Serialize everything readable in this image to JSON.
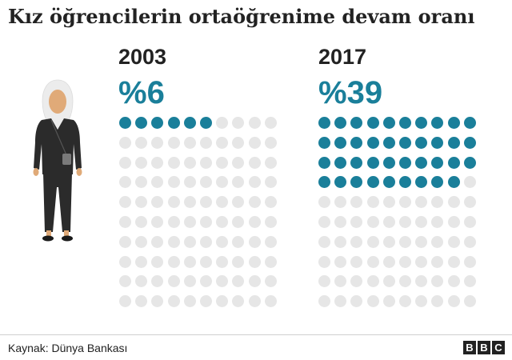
{
  "title": "Kız öğrencilerin ortaöğrenime devam oranı",
  "source": "Kaynak: Dünya Bankası",
  "logo": "BBC",
  "colors": {
    "filled": "#1a7f9a",
    "empty": "#e6e6e6",
    "text": "#222222"
  },
  "chart_data": [
    {
      "type": "waffle",
      "label": "2003",
      "value_label": "%6",
      "value": 6,
      "total": 100,
      "columns": 10,
      "rows": 10
    },
    {
      "type": "waffle",
      "label": "2017",
      "value_label": "%39",
      "value": 39,
      "total": 100,
      "columns": 10,
      "rows": 10
    }
  ]
}
